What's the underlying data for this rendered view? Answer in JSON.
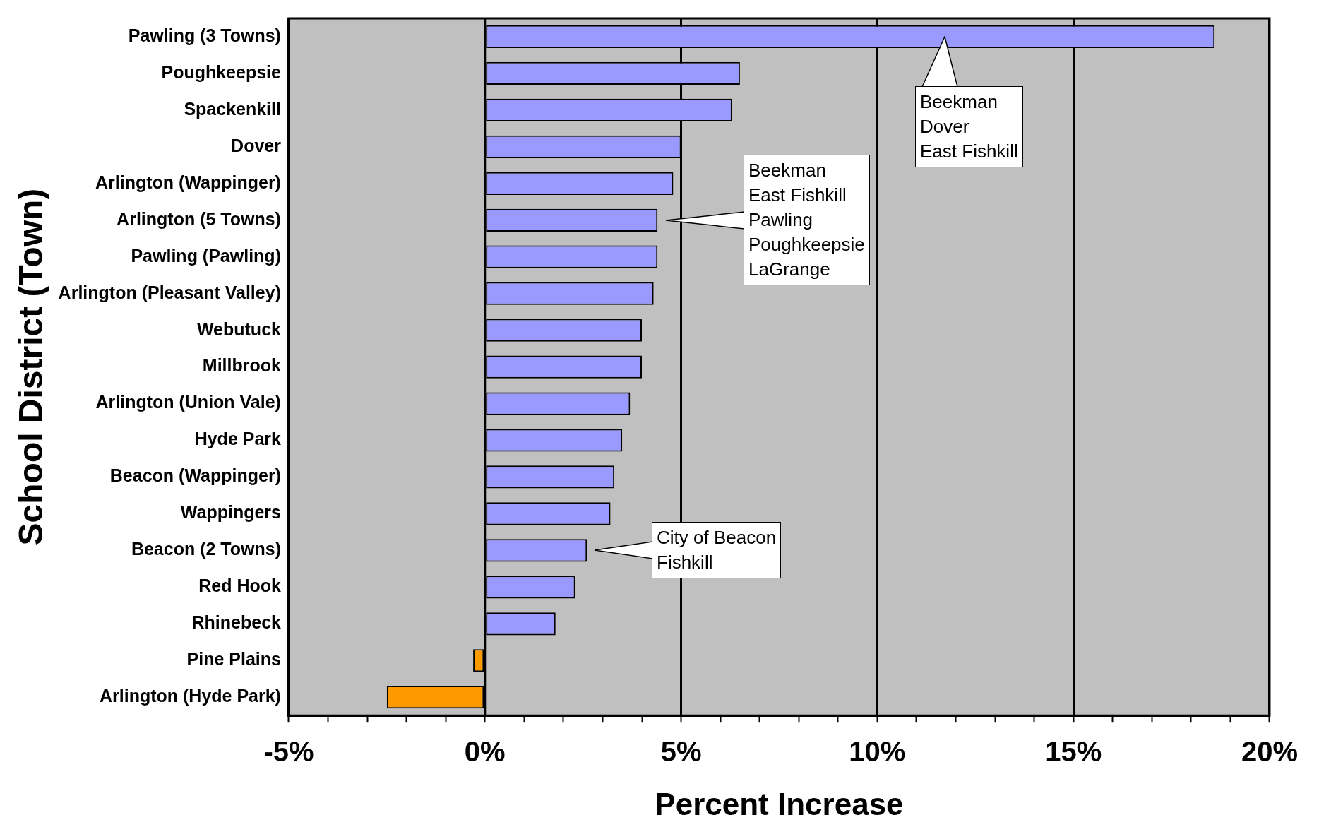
{
  "chart_data": {
    "type": "bar",
    "orientation": "horizontal",
    "xlabel": "Percent Increase",
    "ylabel": "School District (Town)",
    "categories": [
      "Pawling (3 Towns)",
      "Poughkeepsie",
      "Spackenkill",
      "Dover",
      "Arlington (Wappinger)",
      "Arlington (5 Towns)",
      "Pawling (Pawling)",
      "Arlington (Pleasant Valley)",
      "Webutuck",
      "Millbrook",
      "Arlington (Union Vale)",
      "Hyde Park",
      "Beacon (Wappinger)",
      "Wappingers",
      "Beacon (2 Towns)",
      "Red Hook",
      "Rhinebeck",
      "Pine Plains",
      "Arlington (Hyde Park)"
    ],
    "values": [
      18.6,
      6.5,
      6.3,
      5.0,
      4.8,
      4.4,
      4.4,
      4.3,
      4.0,
      4.0,
      3.7,
      3.5,
      3.3,
      3.2,
      2.6,
      2.3,
      1.8,
      -0.3,
      -2.5
    ],
    "colors": [
      "#9999ff",
      "#9999ff",
      "#9999ff",
      "#9999ff",
      "#9999ff",
      "#9999ff",
      "#9999ff",
      "#9999ff",
      "#9999ff",
      "#9999ff",
      "#9999ff",
      "#9999ff",
      "#9999ff",
      "#9999ff",
      "#9999ff",
      "#9999ff",
      "#9999ff",
      "#ff9900",
      "#ff9900"
    ],
    "xlim": [
      -5,
      20
    ],
    "xticks": [
      {
        "value": -5,
        "label": "-5%"
      },
      {
        "value": -4,
        "label": null
      },
      {
        "value": -3,
        "label": null
      },
      {
        "value": -2,
        "label": null
      },
      {
        "value": -1,
        "label": null
      },
      {
        "value": 0,
        "label": "0%"
      },
      {
        "value": 1,
        "label": null
      },
      {
        "value": 2,
        "label": null
      },
      {
        "value": 3,
        "label": null
      },
      {
        "value": 4,
        "label": null
      },
      {
        "value": 5,
        "label": "5%"
      },
      {
        "value": 6,
        "label": null
      },
      {
        "value": 7,
        "label": null
      },
      {
        "value": 8,
        "label": null
      },
      {
        "value": 9,
        "label": null
      },
      {
        "value": 10,
        "label": "10%"
      },
      {
        "value": 11,
        "label": null
      },
      {
        "value": 12,
        "label": null
      },
      {
        "value": 13,
        "label": null
      },
      {
        "value": 14,
        "label": null
      },
      {
        "value": 15,
        "label": "15%"
      },
      {
        "value": 16,
        "label": null
      },
      {
        "value": 17,
        "label": null
      },
      {
        "value": 18,
        "label": null
      },
      {
        "value": 19,
        "label": null
      },
      {
        "value": 20,
        "label": "20%"
      }
    ],
    "grid": "x",
    "legend": false,
    "annotations": [
      "Beekman\nDover\nEast Fishkill",
      "Beekman\nEast Fishkill\nPawling\nPoughkeepsie\nLaGrange",
      "City of Beacon\nFishkill"
    ]
  }
}
